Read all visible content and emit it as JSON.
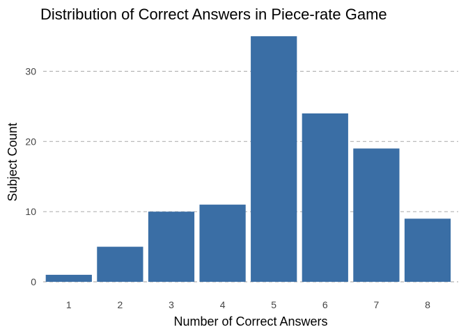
{
  "chart_data": {
    "type": "bar",
    "title": "Distribution of Correct Answers in Piece-rate Game",
    "xlabel": "Number of Correct Answers",
    "ylabel": "Subject Count",
    "categories": [
      "1",
      "2",
      "3",
      "4",
      "5",
      "6",
      "7",
      "8"
    ],
    "values": [
      1,
      5,
      10,
      11,
      35,
      24,
      19,
      9
    ],
    "ylim": [
      0,
      36
    ],
    "yticks": [
      0,
      10,
      20,
      30
    ],
    "grid": true,
    "legend": "none",
    "bar_color": "#3A6EA5",
    "grid_color": "#b3b3b3"
  }
}
